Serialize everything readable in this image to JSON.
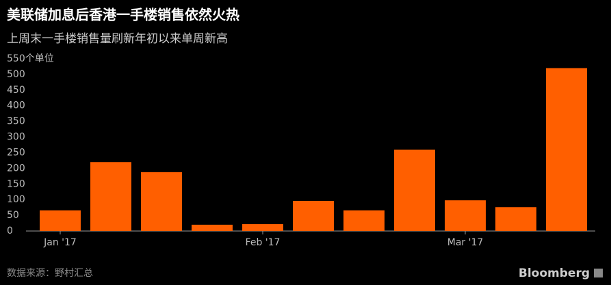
{
  "chart_data": {
    "type": "bar",
    "title": "美联储加息后香港一手楼销售依然火热",
    "subtitle": "上周末一手楼销售量刷新年初以来单周新高",
    "categories": [
      "Jan '17",
      null,
      null,
      null,
      "Feb '17",
      null,
      null,
      null,
      "Mar '17",
      null,
      null
    ],
    "values": [
      66,
      220,
      188,
      20,
      22,
      96,
      66,
      260,
      98,
      76,
      520
    ],
    "color": "#ff5f00",
    "ylim": [
      0,
      550
    ],
    "yticks": [
      0,
      50,
      100,
      150,
      200,
      250,
      300,
      350,
      400,
      450,
      500,
      {
        "value": 550,
        "label": "550个单位"
      }
    ],
    "grid": false,
    "source": "数据来源：野村汇总",
    "brand": "Bloomberg"
  }
}
